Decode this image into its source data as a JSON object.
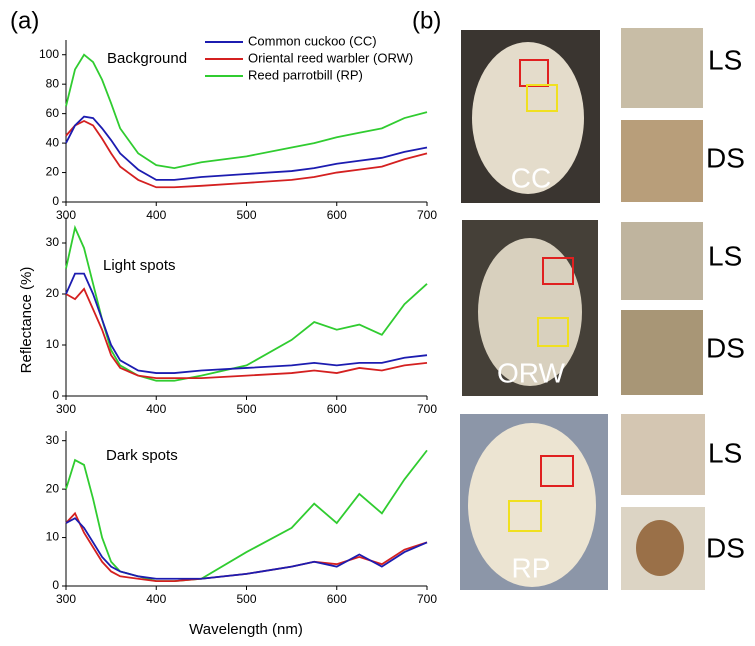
{
  "figure": {
    "panel_a": "(a)",
    "panel_b": "(b)",
    "ylabel": "Reflectance (%)",
    "xlabel": "Wavelength (nm)",
    "eggs": [
      {
        "label": "CC",
        "zooms": [
          "LS",
          "DS"
        ]
      },
      {
        "label": "ORW",
        "zooms": [
          "LS",
          "DS"
        ]
      },
      {
        "label": "RP",
        "zooms": [
          "LS",
          "DS"
        ]
      }
    ]
  },
  "chart_data": [
    {
      "type": "line",
      "title": "Background",
      "legend": "upper right",
      "x": [
        300,
        310,
        320,
        330,
        340,
        350,
        360,
        380,
        400,
        420,
        450,
        500,
        550,
        575,
        600,
        625,
        650,
        675,
        700
      ],
      "xlim": [
        300,
        700
      ],
      "xticks": [
        300,
        400,
        500,
        600,
        700
      ],
      "ylim": [
        0,
        110
      ],
      "yticks": [
        0,
        20,
        40,
        60,
        80,
        100
      ],
      "series": [
        {
          "name": "Common cuckoo (CC)",
          "color": "#1c1cb0",
          "values": [
            40,
            52,
            58,
            57,
            50,
            42,
            33,
            22,
            15,
            15,
            17,
            19,
            21,
            23,
            26,
            28,
            30,
            34,
            37
          ]
        },
        {
          "name": "Oriental reed warbler (ORW)",
          "color": "#d42020",
          "values": [
            45,
            52,
            55,
            52,
            43,
            33,
            24,
            15,
            10,
            10,
            11,
            13,
            15,
            17,
            20,
            22,
            24,
            29,
            33
          ]
        },
        {
          "name": "Reed parrotbill (RP)",
          "color": "#30cc30",
          "values": [
            65,
            90,
            100,
            95,
            83,
            67,
            50,
            33,
            25,
            23,
            27,
            31,
            37,
            40,
            44,
            47,
            50,
            57,
            61
          ]
        }
      ]
    },
    {
      "type": "line",
      "title": "Light spots",
      "x": [
        300,
        310,
        320,
        330,
        340,
        350,
        360,
        380,
        400,
        420,
        450,
        500,
        550,
        575,
        600,
        625,
        650,
        675,
        700
      ],
      "xlim": [
        300,
        700
      ],
      "xticks": [
        300,
        400,
        500,
        600,
        700
      ],
      "ylim": [
        0,
        35
      ],
      "yticks": [
        0,
        10,
        20,
        30
      ],
      "series": [
        {
          "color": "#1c1cb0",
          "values": [
            20,
            24,
            24,
            20,
            15,
            10,
            7,
            5,
            4.5,
            4.5,
            5,
            5.5,
            6,
            6.5,
            6,
            6.5,
            6.5,
            7.5,
            8
          ]
        },
        {
          "color": "#d42020",
          "values": [
            20,
            19,
            21,
            17,
            13,
            8,
            5.5,
            4,
            3.5,
            3.5,
            3.5,
            4,
            4.5,
            5,
            4.5,
            5.5,
            5,
            6,
            6.5
          ]
        },
        {
          "color": "#30cc30",
          "values": [
            25,
            33,
            29,
            22,
            15,
            9,
            6,
            4,
            3,
            3,
            4,
            6,
            11,
            14.5,
            13,
            14,
            12,
            18,
            22
          ]
        }
      ]
    },
    {
      "type": "line",
      "title": "Dark spots",
      "x": [
        300,
        310,
        320,
        330,
        340,
        350,
        360,
        380,
        400,
        420,
        450,
        500,
        550,
        575,
        600,
        625,
        650,
        675,
        700
      ],
      "xlim": [
        300,
        700
      ],
      "xticks": [
        300,
        400,
        500,
        600,
        700
      ],
      "ylim": [
        0,
        32
      ],
      "yticks": [
        0,
        10,
        20,
        30
      ],
      "series": [
        {
          "color": "#1c1cb0",
          "values": [
            13,
            14,
            12,
            9,
            6,
            4,
            3,
            2,
            1.5,
            1.5,
            1.5,
            2.5,
            4,
            5,
            4,
            6.5,
            4,
            7,
            9
          ]
        },
        {
          "color": "#d42020",
          "values": [
            13,
            15,
            11,
            8,
            5,
            3,
            2,
            1.5,
            1,
            1,
            1.5,
            2.5,
            4,
            5,
            4.5,
            6,
            4.5,
            7.5,
            9
          ]
        },
        {
          "color": "#30cc30",
          "values": [
            20,
            26,
            25,
            18,
            10,
            5,
            3,
            2,
            1,
            1,
            1.5,
            7,
            12,
            17,
            13,
            19,
            15,
            22,
            28
          ]
        }
      ]
    }
  ]
}
